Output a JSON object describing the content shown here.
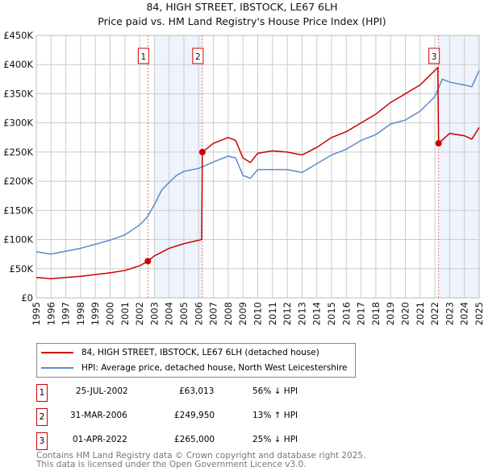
{
  "chart_data": {
    "type": "line",
    "title": "84, HIGH STREET, IBSTOCK, LE67 6LH",
    "subtitle": "Price paid vs. HM Land Registry's House Price Index (HPI)",
    "xlim": [
      1995,
      2025
    ],
    "ylim": [
      0,
      450000
    ],
    "x_ticks": [
      "1995",
      "1996",
      "1997",
      "1998",
      "1999",
      "2000",
      "2001",
      "2002",
      "2003",
      "2004",
      "2005",
      "2006",
      "2007",
      "2008",
      "2009",
      "2010",
      "2011",
      "2012",
      "2013",
      "2014",
      "2015",
      "2016",
      "2017",
      "2018",
      "2019",
      "2020",
      "2021",
      "2022",
      "2023",
      "2024",
      "2025"
    ],
    "y_ticks": [
      {
        "v": 0,
        "label": "£0"
      },
      {
        "v": 50000,
        "label": "£50K"
      },
      {
        "v": 100000,
        "label": "£100K"
      },
      {
        "v": 150000,
        "label": "£150K"
      },
      {
        "v": 200000,
        "label": "£200K"
      },
      {
        "v": 250000,
        "label": "£250K"
      },
      {
        "v": 300000,
        "label": "£300K"
      },
      {
        "v": 350000,
        "label": "£350K"
      },
      {
        "v": 400000,
        "label": "£400K"
      },
      {
        "v": 450000,
        "label": "£450K"
      }
    ],
    "grid": true,
    "series": [
      {
        "name": "84, HIGH STREET, IBSTOCK, LE67 6LH (detached house)",
        "color": "#cc0000",
        "points": [
          [
            1995,
            35000
          ],
          [
            1996,
            33000
          ],
          [
            1997,
            35000
          ],
          [
            1998,
            37000
          ],
          [
            1999,
            40000
          ],
          [
            2000,
            43000
          ],
          [
            2001,
            47000
          ],
          [
            2002,
            55000
          ],
          [
            2002.56,
            63013
          ],
          [
            2003,
            72000
          ],
          [
            2004,
            85000
          ],
          [
            2005,
            93000
          ],
          [
            2006.2,
            100000
          ],
          [
            2006.25,
            249950
          ],
          [
            2007,
            265000
          ],
          [
            2008,
            275000
          ],
          [
            2008.5,
            270000
          ],
          [
            2009,
            240000
          ],
          [
            2009.5,
            232000
          ],
          [
            2010,
            248000
          ],
          [
            2011,
            252000
          ],
          [
            2012,
            250000
          ],
          [
            2013,
            245000
          ],
          [
            2014,
            258000
          ],
          [
            2015,
            275000
          ],
          [
            2016,
            285000
          ],
          [
            2017,
            300000
          ],
          [
            2018,
            315000
          ],
          [
            2019,
            335000
          ],
          [
            2020,
            350000
          ],
          [
            2021,
            365000
          ],
          [
            2022.2,
            395000
          ],
          [
            2022.25,
            265000
          ],
          [
            2023,
            282000
          ],
          [
            2024,
            278000
          ],
          [
            2024.5,
            272000
          ],
          [
            2025,
            292000
          ]
        ]
      },
      {
        "name": "HPI: Average price, detached house, North West Leicestershire",
        "color": "#5b8bd0",
        "points": [
          [
            1995,
            79000
          ],
          [
            1996,
            75000
          ],
          [
            1997,
            80000
          ],
          [
            1998,
            85000
          ],
          [
            1999,
            92000
          ],
          [
            2000,
            99000
          ],
          [
            2001,
            108000
          ],
          [
            2002,
            125000
          ],
          [
            2002.5,
            138000
          ],
          [
            2003,
            160000
          ],
          [
            2003.5,
            185000
          ],
          [
            2004,
            198000
          ],
          [
            2004.5,
            210000
          ],
          [
            2005,
            217000
          ],
          [
            2006,
            222000
          ],
          [
            2007,
            233000
          ],
          [
            2008,
            243000
          ],
          [
            2008.5,
            240000
          ],
          [
            2009,
            210000
          ],
          [
            2009.5,
            205000
          ],
          [
            2010,
            220000
          ],
          [
            2011,
            220000
          ],
          [
            2012,
            220000
          ],
          [
            2013,
            215000
          ],
          [
            2014,
            230000
          ],
          [
            2015,
            245000
          ],
          [
            2016,
            255000
          ],
          [
            2017,
            270000
          ],
          [
            2018,
            280000
          ],
          [
            2019,
            298000
          ],
          [
            2020,
            305000
          ],
          [
            2021,
            320000
          ],
          [
            2022,
            345000
          ],
          [
            2022.5,
            375000
          ],
          [
            2023,
            370000
          ],
          [
            2024,
            365000
          ],
          [
            2024.5,
            362000
          ],
          [
            2025,
            390000
          ]
        ]
      }
    ],
    "sales": [
      {
        "n": "1",
        "x": 2002.56,
        "y": 63013
      },
      {
        "n": "2",
        "x": 2006.25,
        "y": 249950
      },
      {
        "n": "3",
        "x": 2022.25,
        "y": 265000
      }
    ],
    "shaded": [
      [
        2003,
        2006.25
      ],
      [
        2022.25,
        2025
      ]
    ],
    "legend_placement": "below"
  },
  "table": [
    {
      "n": "1",
      "date": "25-JUL-2002",
      "price": "£63,013",
      "hpi": "56% ↓ HPI"
    },
    {
      "n": "2",
      "date": "31-MAR-2006",
      "price": "£249,950",
      "hpi": "13% ↑ HPI"
    },
    {
      "n": "3",
      "date": "01-APR-2022",
      "price": "£265,000",
      "hpi": "25% ↓ HPI"
    }
  ],
  "footer": [
    "Contains HM Land Registry data © Crown copyright and database right 2025.",
    "This data is licensed under the Open Government Licence v3.0."
  ]
}
